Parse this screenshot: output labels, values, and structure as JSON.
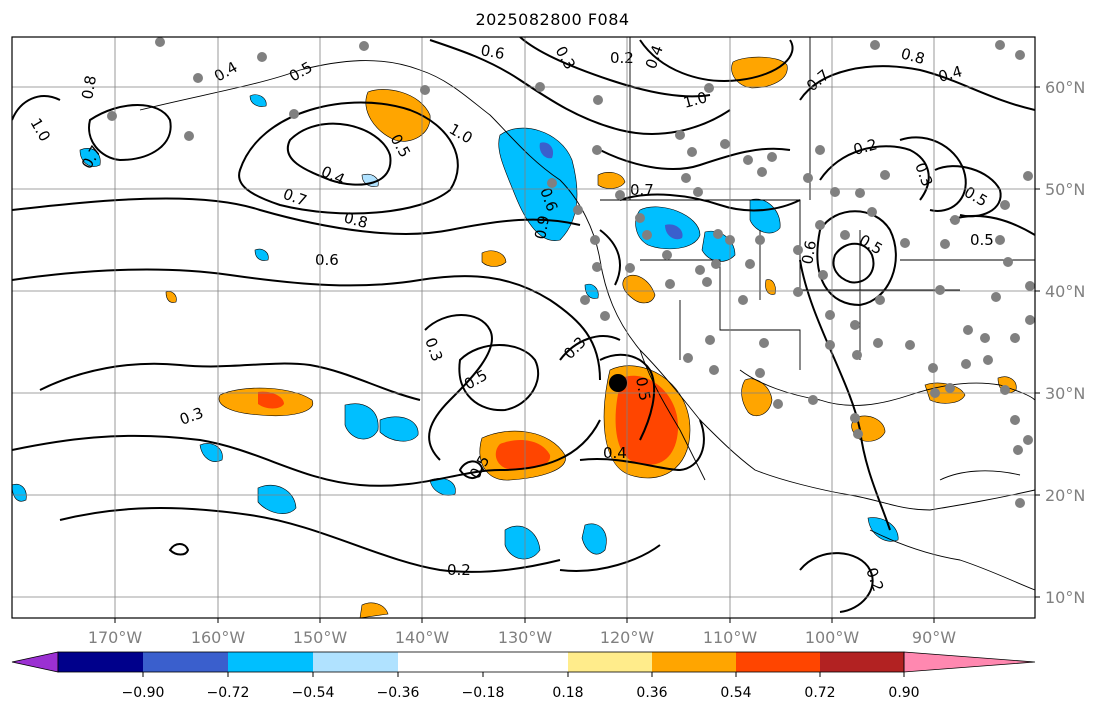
{
  "title": "2025082800 F084",
  "lon_labels": [
    "170°W",
    "160°W",
    "150°W",
    "140°W",
    "130°W",
    "120°W",
    "110°W",
    "100°W",
    "90°W"
  ],
  "lat_labels": [
    "60°N",
    "50°N",
    "40°N",
    "30°N",
    "20°N",
    "10°N"
  ],
  "colorbar": {
    "colors": [
      "#9b30d2",
      "#00008b",
      "#3a5fcd",
      "#00bfff",
      "#b0e2ff",
      "#ffffff",
      "#ffec8b",
      "#ffa500",
      "#ff4500",
      "#b22222",
      "#ff88b0"
    ],
    "tick_labels": [
      "−0.90",
      "−0.72",
      "−0.54",
      "−0.36",
      "−0.18",
      "0.18",
      "0.36",
      "0.54",
      "0.72",
      "0.90"
    ]
  },
  "contour_labels": [
    "1.0",
    "0.8",
    "0.4",
    "0.5",
    "0.6",
    "0.3",
    "0.2",
    "0.4",
    "1.0",
    "0.7",
    "0.8",
    "0.4",
    "0.7",
    "1.0",
    "0.5",
    "0.4",
    "0.7",
    "0.8",
    "0.6",
    "0.9",
    "0.6",
    "0.5",
    "0.2",
    "0.3",
    "0.5",
    "0.5",
    "0.3",
    "0.3",
    "0.5",
    "0.3",
    "0.4",
    "0.5",
    "0.5",
    "0.2",
    "0.2",
    "0.6",
    "0.7"
  ],
  "marker_colors": {
    "station": "#808080",
    "highlight": "#000000"
  }
}
